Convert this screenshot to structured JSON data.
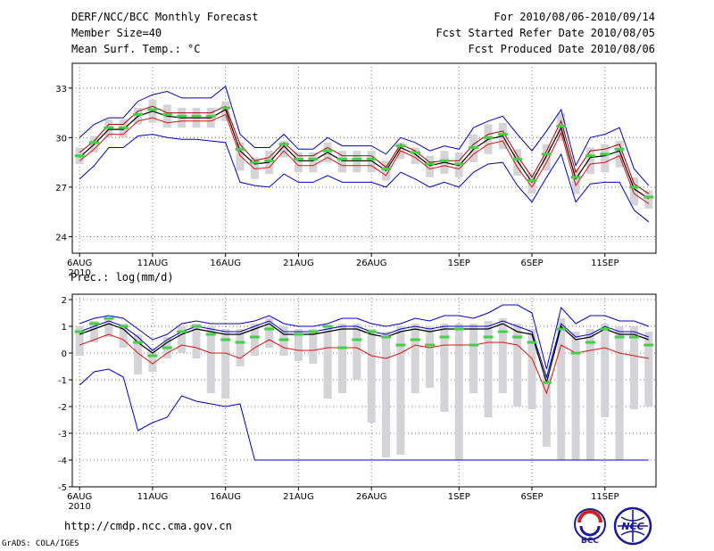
{
  "header": {
    "title": "DERF/NCC/BCC Monthly Forecast",
    "member_size": "Member Size=40",
    "variable": "Mean Surf. Temp.: °C",
    "period": "For 2010/08/06-2010/09/14",
    "started": "Fcst Started Refer Date 2010/08/05",
    "produced": "Fcst Produced Date 2010/08/06"
  },
  "colors": {
    "spread": "#d4d4d8",
    "ensemble_max_min": "#0000cc",
    "ensemble_mean": "#000000",
    "ensemble_plus": "#aa0000",
    "ensemble_minus": "#e01010",
    "median": "#44d044"
  },
  "chart_data": [
    {
      "type": "line",
      "title": "Mean Surf. Temp.: °C",
      "xlabel": "",
      "ylabel": "°C",
      "year_label": "2010",
      "x_ticks": [
        {
          "day": 0,
          "label": "6AUG"
        },
        {
          "day": 5,
          "label": "11AUG"
        },
        {
          "day": 10,
          "label": "16AUG"
        },
        {
          "day": 15,
          "label": "21AUG"
        },
        {
          "day": 20,
          "label": "26AUG"
        },
        {
          "day": 26,
          "label": "1SEP"
        },
        {
          "day": 31,
          "label": "6SEP"
        },
        {
          "day": 36,
          "label": "11SEP"
        }
      ],
      "xlim": [
        -0.5,
        39.5
      ],
      "ylim": [
        23,
        34.5
      ],
      "y_ticks": [
        24,
        27,
        30,
        33
      ],
      "days": 40,
      "series": [
        {
          "name": "max",
          "values": [
            30.0,
            30.8,
            31.2,
            31.2,
            32.2,
            32.6,
            32.8,
            32.4,
            32.4,
            32.4,
            33.1,
            30.2,
            29.4,
            29.4,
            30.2,
            29.3,
            29.3,
            30.0,
            29.5,
            29.5,
            29.5,
            29.0,
            30.0,
            29.7,
            29.2,
            29.5,
            29.3,
            30.6,
            31.0,
            31.3,
            30.2,
            29.2,
            30.4,
            31.7,
            28.3,
            30.0,
            30.2,
            30.6,
            28.1,
            27.1
          ]
        },
        {
          "name": "upper",
          "values": [
            29.1,
            29.8,
            30.8,
            30.8,
            31.6,
            31.9,
            31.5,
            31.5,
            31.5,
            31.5,
            31.9,
            29.6,
            28.6,
            28.8,
            29.7,
            28.9,
            28.9,
            29.4,
            28.9,
            28.9,
            28.9,
            28.2,
            29.6,
            29.2,
            28.5,
            28.6,
            28.6,
            29.6,
            30.2,
            30.4,
            28.9,
            27.6,
            29.2,
            31.0,
            27.9,
            29.2,
            29.3,
            29.6,
            27.2,
            26.6
          ]
        },
        {
          "name": "mean",
          "values": [
            28.8,
            29.6,
            30.5,
            30.5,
            31.3,
            31.6,
            31.3,
            31.2,
            31.2,
            31.2,
            31.7,
            29.2,
            28.4,
            28.5,
            29.5,
            28.6,
            28.6,
            29.1,
            28.6,
            28.6,
            28.6,
            28.0,
            29.4,
            29.0,
            28.3,
            28.5,
            28.3,
            29.3,
            29.9,
            30.1,
            28.6,
            27.3,
            28.9,
            30.6,
            27.5,
            28.8,
            28.9,
            29.2,
            26.9,
            26.3
          ]
        },
        {
          "name": "lower",
          "values": [
            28.6,
            29.3,
            30.2,
            30.2,
            31.0,
            31.2,
            30.9,
            31.0,
            31.0,
            31.0,
            31.4,
            28.9,
            28.1,
            28.2,
            29.2,
            28.3,
            28.3,
            28.8,
            28.3,
            28.3,
            28.3,
            27.7,
            29.2,
            28.8,
            28.1,
            28.3,
            28.1,
            29.0,
            29.6,
            29.8,
            28.2,
            27.0,
            28.5,
            30.3,
            27.1,
            28.4,
            28.5,
            28.9,
            26.6,
            26.0
          ]
        },
        {
          "name": "min",
          "values": [
            27.5,
            28.3,
            29.4,
            29.4,
            30.1,
            30.2,
            30.0,
            29.9,
            29.9,
            29.8,
            29.7,
            27.3,
            27.1,
            27.0,
            27.8,
            27.3,
            27.3,
            27.7,
            27.3,
            27.3,
            27.3,
            27.0,
            27.9,
            27.5,
            27.0,
            27.3,
            27.0,
            27.9,
            28.4,
            28.5,
            27.1,
            26.1,
            27.6,
            29.0,
            26.1,
            27.2,
            27.3,
            27.3,
            25.6,
            24.9
          ]
        },
        {
          "name": "box_high",
          "values": [
            29.4,
            30.1,
            31.1,
            31.1,
            31.8,
            32.3,
            32.0,
            31.8,
            31.8,
            31.8,
            32.2,
            29.7,
            28.8,
            29.2,
            29.8,
            29.1,
            29.1,
            29.7,
            29.2,
            29.2,
            29.2,
            28.6,
            29.7,
            29.4,
            28.9,
            29.2,
            29.1,
            30.2,
            30.8,
            30.9,
            29.3,
            27.9,
            29.6,
            31.5,
            28.1,
            29.4,
            29.6,
            29.8,
            27.6,
            26.8
          ]
        },
        {
          "name": "box_low",
          "values": [
            28.4,
            29.1,
            30.0,
            30.0,
            30.8,
            30.9,
            30.6,
            30.6,
            30.6,
            30.6,
            31.0,
            28.0,
            27.5,
            27.8,
            28.8,
            27.9,
            27.9,
            28.5,
            27.9,
            27.9,
            27.9,
            27.4,
            28.7,
            28.4,
            27.6,
            27.8,
            27.6,
            28.5,
            29.0,
            29.3,
            27.7,
            26.6,
            28.0,
            29.8,
            26.6,
            27.8,
            27.9,
            28.2,
            25.9,
            25.7
          ]
        },
        {
          "name": "median",
          "values": [
            28.9,
            29.7,
            30.6,
            30.6,
            31.4,
            31.7,
            31.4,
            31.3,
            31.3,
            31.3,
            31.8,
            29.3,
            28.5,
            28.6,
            29.6,
            28.7,
            28.7,
            29.2,
            28.7,
            28.7,
            28.7,
            28.1,
            29.5,
            29.1,
            28.4,
            28.6,
            28.4,
            29.4,
            30.0,
            30.2,
            28.7,
            27.4,
            29.0,
            30.7,
            27.6,
            28.9,
            29.0,
            29.3,
            27.0,
            26.4
          ]
        }
      ]
    },
    {
      "type": "line",
      "title": "Prec.: log(mm/d)",
      "xlabel": "",
      "ylabel": "log(mm/d)",
      "year_label": "2010",
      "x_ticks": [
        {
          "day": 0,
          "label": "6AUG"
        },
        {
          "day": 5,
          "label": "11AUG"
        },
        {
          "day": 10,
          "label": "16AUG"
        },
        {
          "day": 15,
          "label": "21AUG"
        },
        {
          "day": 20,
          "label": "26AUG"
        },
        {
          "day": 26,
          "label": "1SEP"
        },
        {
          "day": 31,
          "label": "6SEP"
        },
        {
          "day": 36,
          "label": "11SEP"
        }
      ],
      "xlim": [
        -0.5,
        39.5
      ],
      "ylim": [
        -5,
        2.2
      ],
      "y_ticks": [
        -5,
        -4,
        -3,
        -2,
        -1,
        0,
        1,
        2
      ],
      "days": 40,
      "series": [
        {
          "name": "max",
          "values": [
            1.1,
            1.3,
            1.4,
            1.3,
            0.9,
            0.5,
            0.7,
            1.1,
            1.2,
            1.1,
            1.1,
            1.1,
            1.2,
            1.4,
            1.1,
            1.0,
            1.0,
            1.1,
            1.3,
            1.3,
            1.1,
            1.0,
            1.1,
            1.3,
            1.2,
            1.4,
            1.4,
            1.3,
            1.5,
            1.8,
            1.8,
            1.5,
            -0.6,
            1.7,
            1.1,
            1.4,
            1.4,
            1.2,
            1.2,
            1.0
          ]
        },
        {
          "name": "upper",
          "values": [
            0.8,
            1.0,
            1.2,
            1.0,
            0.6,
            0.1,
            0.5,
            0.8,
            1.0,
            0.9,
            0.8,
            0.8,
            1.0,
            1.2,
            0.8,
            0.8,
            0.8,
            0.9,
            1.0,
            1.0,
            0.8,
            0.7,
            0.9,
            1.0,
            0.9,
            1.0,
            1.0,
            1.0,
            1.0,
            1.2,
            1.0,
            0.8,
            -0.9,
            1.1,
            0.6,
            0.7,
            1.0,
            0.8,
            0.8,
            0.6
          ]
        },
        {
          "name": "mean",
          "values": [
            0.7,
            0.9,
            1.1,
            0.9,
            0.4,
            0.0,
            0.4,
            0.7,
            0.9,
            0.8,
            0.7,
            0.7,
            0.9,
            1.1,
            0.7,
            0.7,
            0.7,
            0.8,
            0.9,
            0.9,
            0.7,
            0.6,
            0.8,
            0.9,
            0.8,
            0.9,
            0.9,
            0.9,
            0.9,
            1.1,
            0.8,
            0.7,
            -1.1,
            1.0,
            0.5,
            0.6,
            0.9,
            0.7,
            0.7,
            0.5
          ]
        },
        {
          "name": "lower",
          "values": [
            0.3,
            0.5,
            0.7,
            0.5,
            0.0,
            -0.4,
            0.0,
            0.3,
            0.2,
            0.0,
            0.0,
            -0.2,
            0.2,
            0.5,
            0.2,
            0.1,
            0.1,
            0.2,
            0.2,
            0.2,
            -0.1,
            -0.2,
            0.0,
            0.3,
            0.2,
            0.3,
            0.3,
            0.3,
            0.4,
            0.4,
            0.3,
            -0.2,
            -1.5,
            0.3,
            0.0,
            0.1,
            0.2,
            0.0,
            -0.1,
            -0.2
          ]
        },
        {
          "name": "min",
          "values": [
            -1.2,
            -0.7,
            -0.6,
            -0.9,
            -2.9,
            -2.6,
            -2.4,
            -1.6,
            -1.8,
            -1.9,
            -2.0,
            -1.9,
            -4.0,
            -4.0,
            -4.0,
            -4.0,
            -4.0,
            -4.0,
            -4.0,
            -4.0,
            -4.0,
            -4.0,
            -4.0,
            -4.0,
            -4.0,
            -4.0,
            -4.0,
            -4.0,
            -4.0,
            -4.0,
            -4.0,
            -4.0,
            -4.0,
            -4.0,
            -4.0,
            -4.0,
            -4.0,
            -4.0,
            -4.0,
            -4.0
          ]
        },
        {
          "name": "box_high",
          "values": [
            1.0,
            1.2,
            1.3,
            1.1,
            0.7,
            0.2,
            0.6,
            1.0,
            1.1,
            1.0,
            0.9,
            0.9,
            1.1,
            1.3,
            1.0,
            0.9,
            0.9,
            1.0,
            1.1,
            1.1,
            0.9,
            0.8,
            1.0,
            1.1,
            1.0,
            1.1,
            1.1,
            1.1,
            1.2,
            1.3,
            1.1,
            0.9,
            -0.8,
            1.3,
            0.8,
            0.9,
            1.1,
            1.0,
            1.0,
            0.8
          ]
        },
        {
          "name": "box_low",
          "values": [
            -0.1,
            0.4,
            0.6,
            0.2,
            -0.8,
            -0.7,
            -0.2,
            0.0,
            -0.2,
            -1.5,
            -1.7,
            -0.5,
            -0.1,
            0.2,
            -0.1,
            -0.3,
            -0.4,
            -1.7,
            -1.5,
            -1.0,
            -2.6,
            -3.9,
            -3.8,
            -1.5,
            -1.3,
            -2.2,
            -4.0,
            -1.5,
            -2.4,
            -1.5,
            -2.0,
            -2.1,
            -3.5,
            -4.0,
            -4.0,
            -4.0,
            -2.4,
            -4.0,
            -2.1,
            -2.0
          ]
        },
        {
          "name": "median",
          "values": [
            0.8,
            1.1,
            1.3,
            1.0,
            0.4,
            -0.1,
            0.2,
            0.8,
            1.0,
            0.7,
            0.5,
            0.4,
            0.6,
            0.9,
            0.5,
            0.7,
            0.8,
            1.0,
            0.2,
            0.5,
            0.8,
            0.6,
            0.3,
            0.5,
            0.3,
            0.6,
            0.9,
            0.3,
            0.6,
            0.8,
            0.6,
            0.4,
            -1.1,
            0.9,
            0.0,
            0.4,
            0.9,
            0.6,
            0.6,
            0.3
          ]
        }
      ]
    }
  ],
  "footer": {
    "url": "http://cmdp.ncc.cma.gov.cn",
    "credit": "GrADS: COLA/IGES",
    "logo_left": "BCC",
    "logo_right": "NCC"
  }
}
